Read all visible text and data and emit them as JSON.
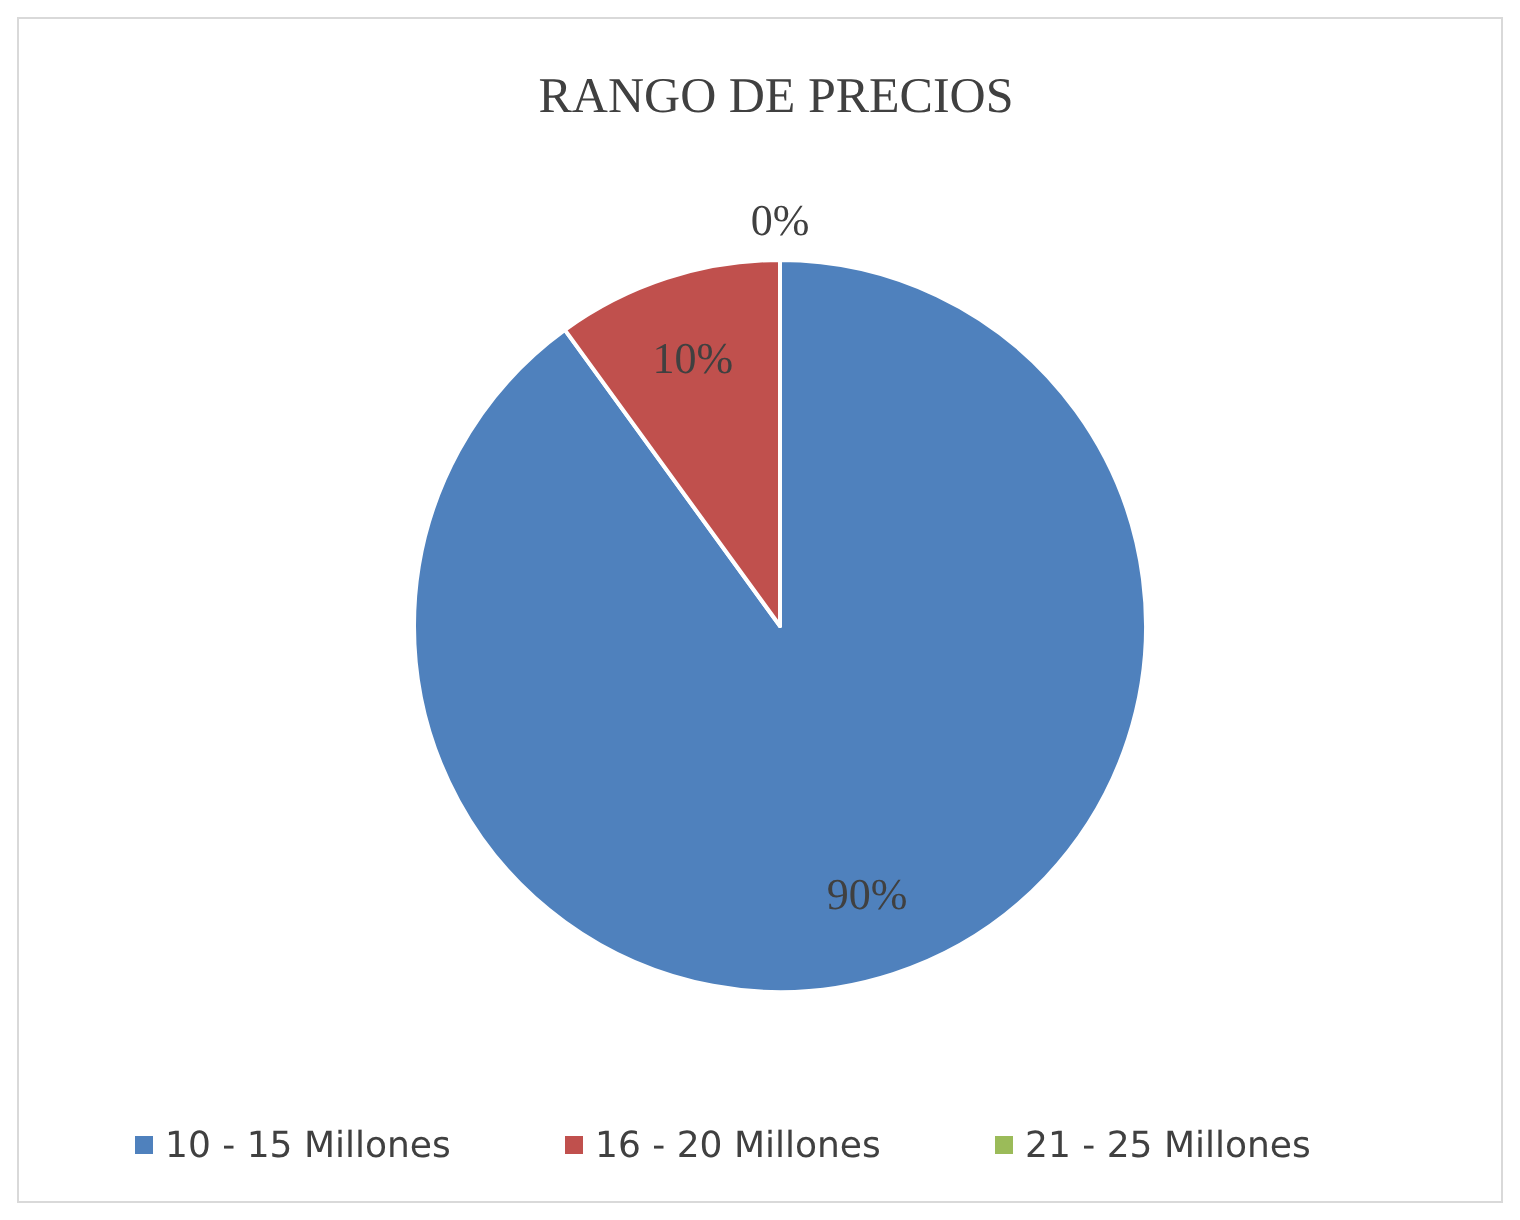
{
  "chart_data": {
    "type": "pie",
    "title": "RANGO DE PRECIOS",
    "categories": [
      "10 - 15 Millones",
      "16 - 20 Millones",
      "21 - 25 Millones"
    ],
    "values": [
      90,
      10,
      0
    ],
    "colors": [
      "#4f81bd",
      "#c0504d",
      "#9bbb59"
    ],
    "value_labels": [
      "90%",
      "10%",
      "0%"
    ],
    "legend": "bottom"
  }
}
